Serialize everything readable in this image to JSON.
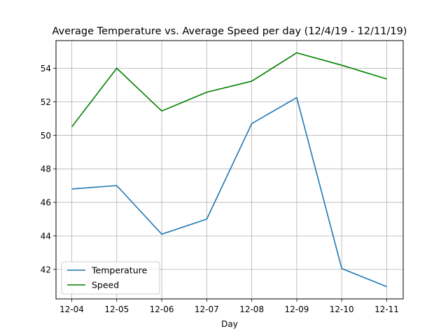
{
  "chart_data": {
    "type": "line",
    "title": "Average Temperature vs. Average Speed per day (12/4/19 - 12/11/19)",
    "xlabel": "Day",
    "ylabel": "",
    "categories": [
      "12-04",
      "12-05",
      "12-06",
      "12-07",
      "12-08",
      "12-09",
      "12-10",
      "12-11"
    ],
    "series": [
      {
        "name": "Temperature",
        "color": "#1f77b4",
        "values": [
          46.8,
          47.0,
          44.1,
          45.0,
          50.7,
          52.25,
          42.05,
          40.97
        ]
      },
      {
        "name": "Speed",
        "color": "#008000",
        "values": [
          50.5,
          54.0,
          51.45,
          52.57,
          53.23,
          54.92,
          54.18,
          53.36
        ]
      }
    ],
    "ylim": [
      40.24,
      55.65
    ],
    "yticks": [
      42,
      44,
      46,
      48,
      50,
      52,
      54
    ],
    "grid": true,
    "legend_position": "lower-left"
  }
}
